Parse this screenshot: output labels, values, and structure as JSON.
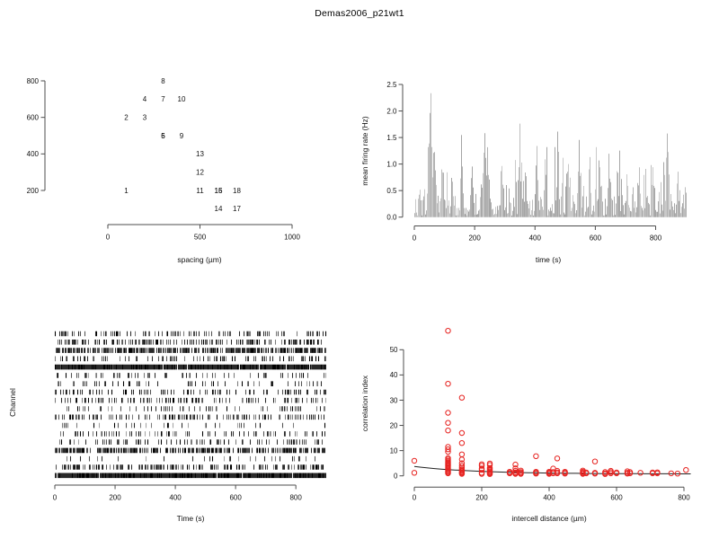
{
  "title": "Demas2006_p21wt1",
  "colors": {
    "background": "#ffffff",
    "axis": "#4d4d4d",
    "text": "#111111",
    "firing_rate_gray": "#b4b4b4",
    "correlation_point_red": "#e62320",
    "fit_line_black": "#222222"
  },
  "chart_data": [
    {
      "id": "electrode_map",
      "type": "scatter",
      "xlabel": "spacing (µm)",
      "ylabel": "",
      "x_ticks": [
        0,
        500,
        1000
      ],
      "y_ticks": [
        800,
        600,
        400,
        200
      ],
      "xlim": [
        0,
        1000
      ],
      "ylim": [
        100,
        800
      ],
      "note": "unit numbers plotted at electrode positions; 5/6 and 15/16 overprint and look bold",
      "points": [
        {
          "label": "1",
          "x": 100,
          "y": 200
        },
        {
          "label": "2",
          "x": 100,
          "y": 600
        },
        {
          "label": "3",
          "x": 200,
          "y": 600
        },
        {
          "label": "4",
          "x": 200,
          "y": 700
        },
        {
          "label": "5",
          "x": 300,
          "y": 500
        },
        {
          "label": "6",
          "x": 300,
          "y": 500
        },
        {
          "label": "7",
          "x": 300,
          "y": 700
        },
        {
          "label": "8",
          "x": 300,
          "y": 800
        },
        {
          "label": "9",
          "x": 400,
          "y": 500
        },
        {
          "label": "10",
          "x": 400,
          "y": 700
        },
        {
          "label": "11",
          "x": 500,
          "y": 200
        },
        {
          "label": "12",
          "x": 500,
          "y": 300
        },
        {
          "label": "13",
          "x": 500,
          "y": 400
        },
        {
          "label": "14",
          "x": 600,
          "y": 100
        },
        {
          "label": "15",
          "x": 600,
          "y": 200
        },
        {
          "label": "16",
          "x": 600,
          "y": 200
        },
        {
          "label": "17",
          "x": 700,
          "y": 100
        },
        {
          "label": "18",
          "x": 700,
          "y": 200
        }
      ]
    },
    {
      "id": "firing_rate",
      "type": "bar",
      "xlabel": "time (s)",
      "ylabel": "mean firing rate (Hz)",
      "x_ticks": [
        0,
        200,
        400,
        600,
        800
      ],
      "y_ticks": [
        0.0,
        0.5,
        1.0,
        1.5,
        2.0,
        2.5
      ],
      "y_tick_labels": [
        "0.0",
        "0.5",
        "1.0",
        "1.5",
        "2.0",
        "2.5"
      ],
      "xlim": [
        0,
        900
      ],
      "ylim": [
        0,
        2.72
      ],
      "note": "dense gray 1-px bars of noisy population rate; peaks listed below, baseline noise ~0.3 Hz",
      "peaks": [
        {
          "t": 51,
          "amp": 2.72,
          "w": 5
        },
        {
          "t": 62,
          "amp": 1.4,
          "w": 8
        },
        {
          "t": 92,
          "amp": 1.15,
          "w": 5
        },
        {
          "t": 125,
          "amp": 1.0,
          "w": 4
        },
        {
          "t": 155,
          "amp": 1.68,
          "w": 3
        },
        {
          "t": 190,
          "amp": 1.25,
          "w": 4
        },
        {
          "t": 232,
          "amp": 2.48,
          "w": 4
        },
        {
          "t": 240,
          "amp": 1.5,
          "w": 8
        },
        {
          "t": 290,
          "amp": 1.3,
          "w": 4
        },
        {
          "t": 348,
          "amp": 2.02,
          "w": 3
        },
        {
          "t": 368,
          "amp": 1.5,
          "w": 3
        },
        {
          "t": 405,
          "amp": 1.58,
          "w": 4
        },
        {
          "t": 432,
          "amp": 1.5,
          "w": 3
        },
        {
          "t": 475,
          "amp": 1.9,
          "w": 3
        },
        {
          "t": 508,
          "amp": 1.5,
          "w": 4
        },
        {
          "t": 545,
          "amp": 1.55,
          "w": 4
        },
        {
          "t": 580,
          "amp": 1.35,
          "w": 3
        },
        {
          "t": 612,
          "amp": 1.55,
          "w": 3
        },
        {
          "t": 645,
          "amp": 1.35,
          "w": 4
        },
        {
          "t": 672,
          "amp": 1.3,
          "w": 3
        },
        {
          "t": 705,
          "amp": 1.2,
          "w": 3
        },
        {
          "t": 745,
          "amp": 1.05,
          "w": 3
        },
        {
          "t": 790,
          "amp": 1.0,
          "w": 3
        },
        {
          "t": 838,
          "amp": 1.72,
          "w": 4
        },
        {
          "t": 872,
          "amp": 0.95,
          "w": 3
        }
      ],
      "render": {
        "seed": 20,
        "base": 0.27,
        "shades": [
          "#c9c9c9",
          "#bdbdbd",
          "#b1b1b1",
          "#a5a5a5"
        ]
      }
    },
    {
      "id": "raster",
      "type": "raster",
      "xlabel": "Time (s)",
      "ylabel": "Channel",
      "x_ticks": [
        0,
        200,
        400,
        600,
        800
      ],
      "xlim": [
        0,
        900
      ],
      "n_channels": 18,
      "note": "spike raster, 18 channels top to bottom; density = fraction of time bins with spikes, dark = overall blackness",
      "channels": [
        {
          "density": 0.32,
          "dark": 0.55
        },
        {
          "density": 0.45,
          "dark": 0.62
        },
        {
          "density": 0.68,
          "dark": 0.72
        },
        {
          "density": 0.22,
          "dark": 0.62
        },
        {
          "density": 0.97,
          "dark": 0.88
        },
        {
          "density": 0.16,
          "dark": 0.5
        },
        {
          "density": 0.14,
          "dark": 0.5
        },
        {
          "density": 0.26,
          "dark": 0.72
        },
        {
          "density": 0.33,
          "dark": 0.5
        },
        {
          "density": 0.16,
          "dark": 0.45
        },
        {
          "density": 0.36,
          "dark": 0.58
        },
        {
          "density": 0.13,
          "dark": 0.45
        },
        {
          "density": 0.2,
          "dark": 0.48
        },
        {
          "density": 0.32,
          "dark": 0.52
        },
        {
          "density": 0.62,
          "dark": 0.78
        },
        {
          "density": 0.12,
          "dark": 0.4
        },
        {
          "density": 0.47,
          "dark": 0.62
        },
        {
          "density": 0.98,
          "dark": 0.92
        }
      ],
      "render": {
        "seed": 7
      }
    },
    {
      "id": "correlation",
      "type": "scatter",
      "xlabel": "intercell distance (µm)",
      "ylabel": "correlation index",
      "x_ticks": [
        0,
        200,
        400,
        600,
        800
      ],
      "y_ticks": [
        0,
        10,
        20,
        30,
        40,
        50
      ],
      "xlim": [
        0,
        820
      ],
      "ylim": [
        0,
        58
      ],
      "point_color": "#e62320",
      "fit": {
        "c": 0.75,
        "a": 2.95,
        "tau": 190,
        "x_end": 820
      },
      "points": [
        [
          0,
          6
        ],
        [
          0,
          1.2
        ],
        [
          100,
          57.5
        ],
        [
          100,
          36.5
        ],
        [
          100,
          25
        ],
        [
          100,
          21
        ],
        [
          100,
          18
        ],
        [
          100,
          11.5
        ],
        [
          100,
          10.5
        ],
        [
          100,
          9.5
        ],
        [
          100,
          7
        ],
        [
          100,
          6.5
        ],
        [
          100,
          6
        ],
        [
          100,
          5.5
        ],
        [
          100,
          5
        ],
        [
          100,
          4.5
        ],
        [
          100,
          4
        ],
        [
          100,
          3.5
        ],
        [
          100,
          3
        ],
        [
          100,
          2.5
        ],
        [
          100,
          2
        ],
        [
          100,
          1.6
        ],
        [
          100,
          1.2
        ],
        [
          100,
          1
        ],
        [
          141,
          31
        ],
        [
          141,
          17
        ],
        [
          141,
          13
        ],
        [
          141,
          8.5
        ],
        [
          141,
          6.5
        ],
        [
          141,
          5
        ],
        [
          141,
          4
        ],
        [
          141,
          3.2
        ],
        [
          141,
          2.6
        ],
        [
          141,
          2.2
        ],
        [
          141,
          1.8
        ],
        [
          141,
          1.4
        ],
        [
          141,
          1.1
        ],
        [
          141,
          0.8
        ],
        [
          200,
          4.6
        ],
        [
          200,
          4
        ],
        [
          200,
          2.9
        ],
        [
          200,
          2.4
        ],
        [
          200,
          1.2
        ],
        [
          200,
          0.8
        ],
        [
          224,
          4.9
        ],
        [
          224,
          4.3
        ],
        [
          224,
          3.1
        ],
        [
          224,
          2.7
        ],
        [
          224,
          2.3
        ],
        [
          224,
          1.9
        ],
        [
          224,
          1.5
        ],
        [
          224,
          1.1
        ],
        [
          224,
          0.9
        ],
        [
          224,
          0.7
        ],
        [
          283,
          1.6
        ],
        [
          283,
          1.2
        ],
        [
          283,
          1
        ],
        [
          300,
          4.5
        ],
        [
          300,
          3
        ],
        [
          300,
          2
        ],
        [
          300,
          1.4
        ],
        [
          300,
          1
        ],
        [
          300,
          0.8
        ],
        [
          316,
          2.1
        ],
        [
          316,
          1.5
        ],
        [
          316,
          1.1
        ],
        [
          316,
          0.8
        ],
        [
          361,
          7.8
        ],
        [
          361,
          1.6
        ],
        [
          361,
          1.2
        ],
        [
          361,
          0.9
        ],
        [
          400,
          1.6
        ],
        [
          400,
          1.3
        ],
        [
          400,
          1
        ],
        [
          400,
          0.8
        ],
        [
          412,
          2.9
        ],
        [
          412,
          1.5
        ],
        [
          412,
          1
        ],
        [
          424,
          6.9
        ],
        [
          424,
          2
        ],
        [
          424,
          1.4
        ],
        [
          424,
          1
        ],
        [
          447,
          1.6
        ],
        [
          447,
          1.2
        ],
        [
          447,
          0.9
        ],
        [
          500,
          2.1
        ],
        [
          500,
          1.6
        ],
        [
          500,
          1.2
        ],
        [
          500,
          1
        ],
        [
          500,
          0.8
        ],
        [
          510,
          1.3
        ],
        [
          510,
          1
        ],
        [
          536,
          5.7
        ],
        [
          536,
          1.2
        ],
        [
          536,
          0.9
        ],
        [
          566,
          1.5
        ],
        [
          566,
          1
        ],
        [
          566,
          0.7
        ],
        [
          583,
          2
        ],
        [
          583,
          1.5
        ],
        [
          583,
          1
        ],
        [
          600,
          1.3
        ],
        [
          600,
          1
        ],
        [
          632,
          1.8
        ],
        [
          632,
          1.2
        ],
        [
          632,
          0.9
        ],
        [
          640,
          1.5
        ],
        [
          640,
          1
        ],
        [
          671,
          1.2
        ],
        [
          707,
          1.3
        ],
        [
          707,
          1
        ],
        [
          721,
          1.4
        ],
        [
          721,
          1
        ],
        [
          762,
          1
        ],
        [
          781,
          0.9
        ],
        [
          806,
          2.3
        ]
      ]
    }
  ]
}
